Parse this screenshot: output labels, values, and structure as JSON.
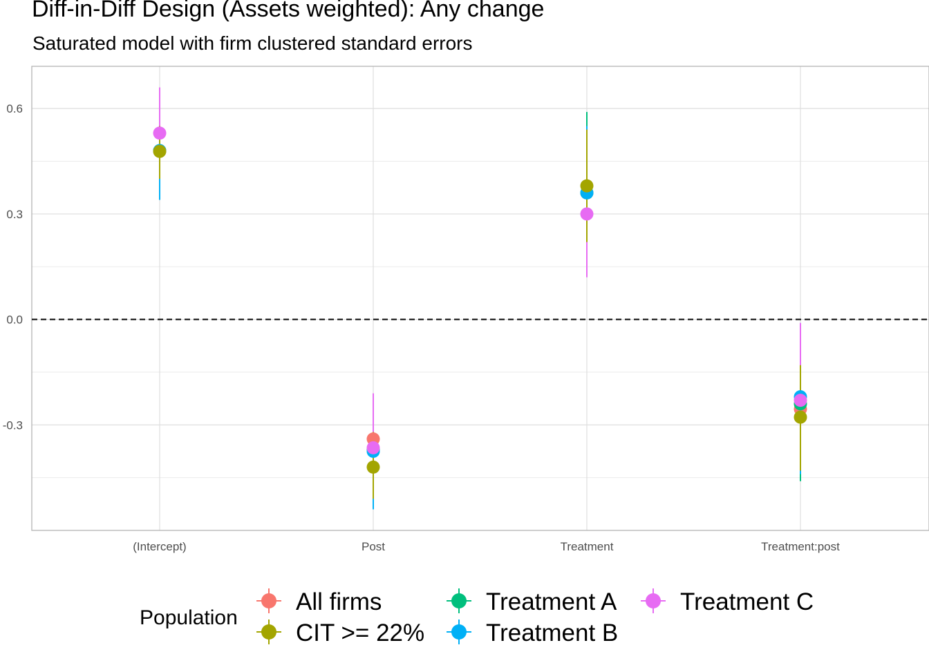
{
  "chart_data": {
    "type": "scatter",
    "title": "Diff-in-Diff Design (Assets weighted): Any change",
    "subtitle": "Saturated model with firm clustered standard errors",
    "xlabel": "",
    "ylabel": "",
    "categories": [
      "(Intercept)",
      "Post",
      "Treatment",
      "Treatment:post"
    ],
    "ylim": [
      -0.6,
      0.72
    ],
    "yticks": [
      0.6,
      0.3,
      0.0,
      -0.3
    ],
    "ytick_labels": [
      "0.6",
      "0.3",
      "0.0",
      "-0.3"
    ],
    "reference_line": {
      "y": 0,
      "style": "dashed"
    },
    "grid": true,
    "legend": {
      "title": "Population",
      "placement": "bottom"
    },
    "series": [
      {
        "name": "All firms",
        "color": "#F8766D",
        "values": [
          0.48,
          -0.34,
          0.36,
          -0.255
        ],
        "lower": [
          0.4,
          -0.52,
          0.17,
          -0.4
        ],
        "upper": [
          0.56,
          -0.24,
          0.56,
          -0.08
        ]
      },
      {
        "name": "Treatment A",
        "color": "#00BF7D",
        "values": [
          0.48,
          -0.37,
          0.36,
          -0.24
        ],
        "lower": [
          0.4,
          -0.53,
          0.17,
          -0.46
        ],
        "upper": [
          0.56,
          -0.24,
          0.59,
          -0.02
        ]
      },
      {
        "name": "Treatment B",
        "color": "#00B0F6",
        "values": [
          0.48,
          -0.375,
          0.36,
          -0.22
        ],
        "lower": [
          0.34,
          -0.54,
          0.2,
          -0.44
        ],
        "upper": [
          0.56,
          -0.22,
          0.55,
          -0.01
        ]
      },
      {
        "name": "Treatment C",
        "color": "#E76BF3",
        "values": [
          0.53,
          -0.365,
          0.3,
          -0.23
        ],
        "lower": [
          0.41,
          -0.51,
          0.12,
          -0.39
        ],
        "upper": [
          0.66,
          -0.21,
          0.48,
          -0.01
        ]
      },
      {
        "name": "CIT >= 22%",
        "color": "#A3A500",
        "values": [
          0.478,
          -0.42,
          0.38,
          -0.278
        ],
        "lower": [
          0.4,
          -0.51,
          0.22,
          -0.43
        ],
        "upper": [
          0.55,
          -0.32,
          0.54,
          -0.13
        ]
      }
    ]
  },
  "legend_columns": [
    [
      "All firms",
      "CIT >= 22%"
    ],
    [
      "Treatment A",
      "Treatment B"
    ],
    [
      "Treatment C"
    ]
  ]
}
